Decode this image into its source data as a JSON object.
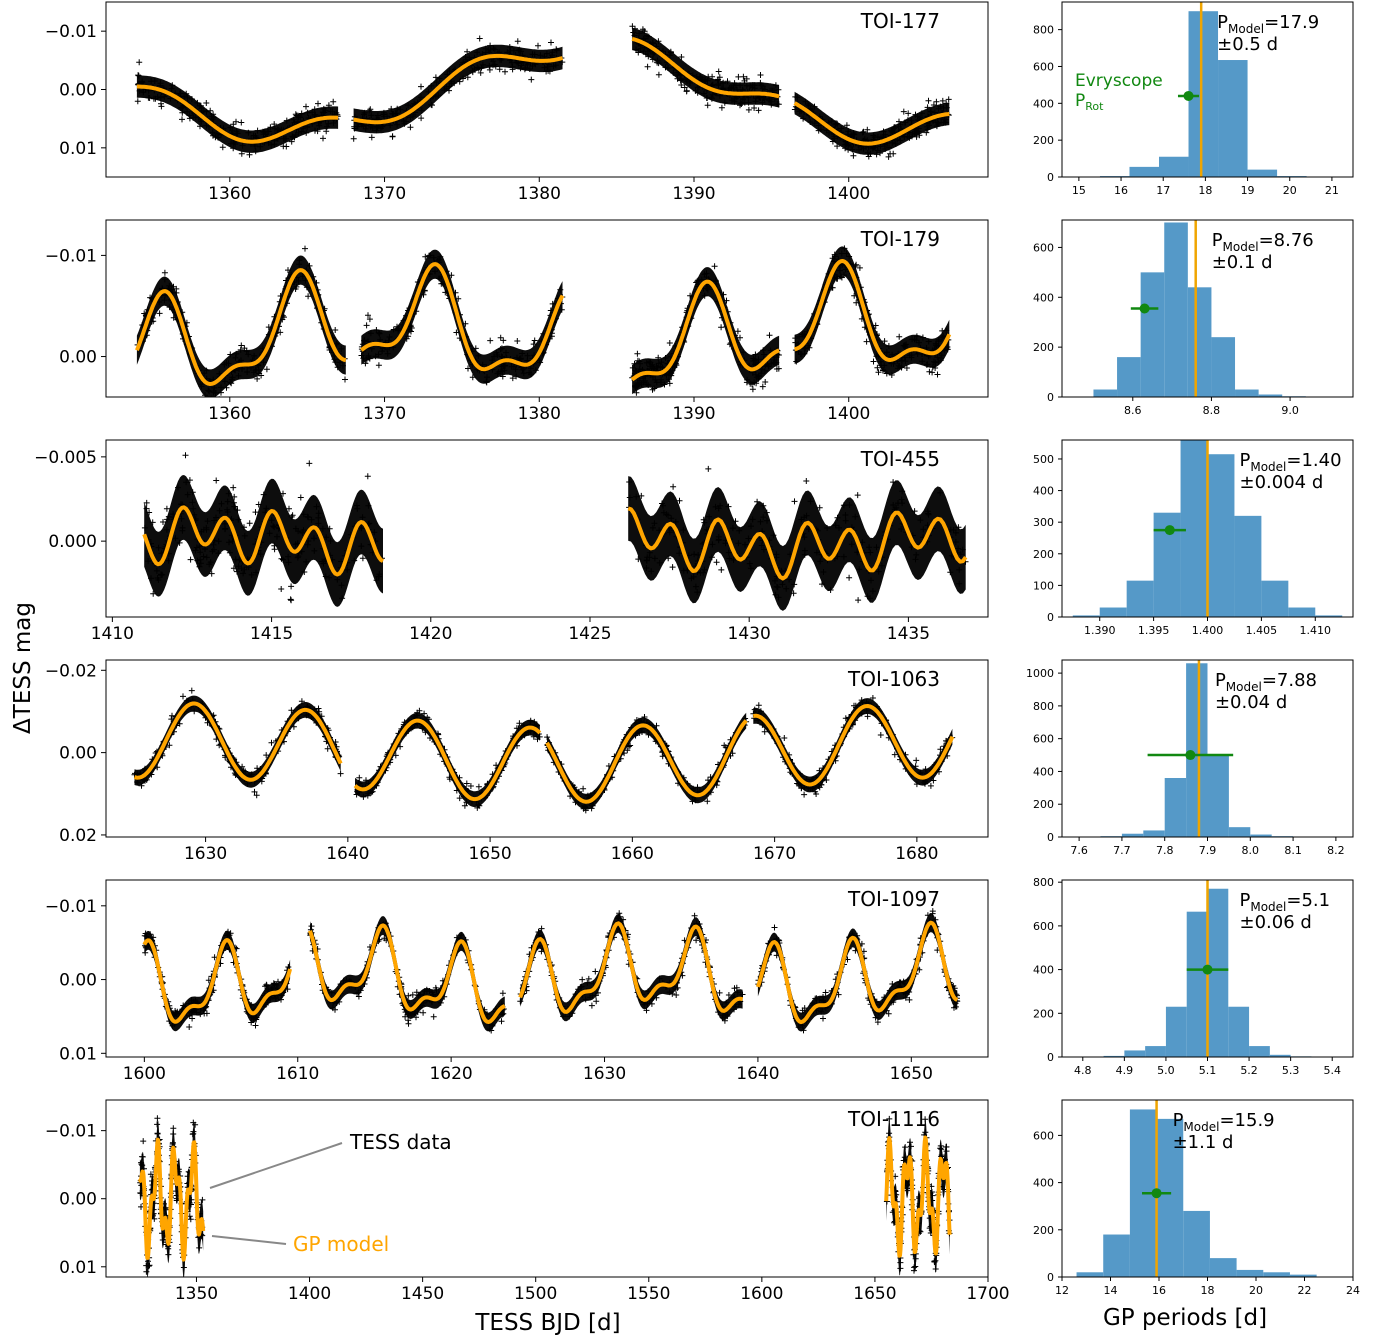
{
  "figure": {
    "ylabel": "ΔTESS mag",
    "xlabel_left": "TESS BJD [d]",
    "xlabel_right": "GP periods [d]"
  },
  "colors": {
    "data": "#000000",
    "model": "#FFA500",
    "hist": "#5599C8",
    "period_line": "#F0A500",
    "evryscope": "#118811"
  },
  "annotations": {
    "evryscope_label": "Evryscope",
    "evryscope_sub": "P",
    "evryscope_sub_sub": "Rot",
    "tess_data": "TESS data",
    "gp_model": "GP model"
  },
  "chart_data": [
    {
      "type": "scatter",
      "title": "TOI-177",
      "xlim": [
        1352,
        1409
      ],
      "ylim": [
        0.015,
        -0.015
      ],
      "xticks": [
        1360,
        1370,
        1380,
        1390,
        1400
      ],
      "yticks": [
        -0.01,
        0.0,
        0.01
      ],
      "ytick_labels": [
        "−0.01",
        "0.00",
        "0.01"
      ],
      "segments": [
        [
          1354,
          1367
        ],
        [
          1368,
          1381.5
        ],
        [
          1386,
          1395.5
        ],
        [
          1396.5,
          1406.5
        ]
      ],
      "model": {
        "components": [
          [
            0.0075,
            39,
            1.8
          ],
          [
            0.002,
            10,
            1.0
          ]
        ],
        "offset": 0.0
      },
      "scatter_mag": 0.0012,
      "histogram": {
        "xlim": [
          14.6,
          21.5
        ],
        "ylim": [
          0,
          950
        ],
        "xticks": [
          15,
          16,
          17,
          18,
          19,
          20,
          21
        ],
        "ytick_labels": [
          "0",
          "200",
          "400",
          "600",
          "800"
        ],
        "yticks": [
          0,
          200,
          400,
          600,
          800
        ],
        "bin_edges": [
          15.5,
          16.2,
          16.9,
          17.6,
          18.3,
          19.0,
          19.7,
          20.4
        ],
        "counts": [
          5,
          55,
          110,
          900,
          635,
          40,
          5
        ],
        "p_model": 17.9,
        "p_model_label": "=17.9",
        "p_err_label": "±0.5 d",
        "evryscope": {
          "value": 17.6,
          "err": 0.25,
          "y": 440
        }
      }
    },
    {
      "type": "scatter",
      "title": "TOI-179",
      "xlim": [
        1352,
        1409
      ],
      "ylim": [
        0.004,
        -0.0135
      ],
      "xticks": [
        1360,
        1370,
        1380,
        1390,
        1400
      ],
      "yticks": [
        -0.01,
        0.0
      ],
      "ytick_labels": [
        "−0.01",
        "0.00"
      ],
      "segments": [
        [
          1354,
          1367.5
        ],
        [
          1368.5,
          1381.5
        ],
        [
          1386,
          1395.5
        ],
        [
          1396.5,
          1406.5
        ]
      ],
      "model": {
        "components": [
          [
            0.0042,
            8.76,
            0.0
          ],
          [
            0.0018,
            4.38,
            1.2
          ],
          [
            0.0015,
            30,
            0.5
          ]
        ],
        "offset": -0.002
      },
      "scatter_mag": 0.0009,
      "histogram": {
        "xlim": [
          8.42,
          9.16
        ],
        "ylim": [
          0,
          710
        ],
        "xticks": [
          8.6,
          8.8,
          9.0
        ],
        "ytick_labels": [
          "0",
          "200",
          "400",
          "600"
        ],
        "yticks": [
          0,
          200,
          400,
          600
        ],
        "bin_edges": [
          8.5,
          8.56,
          8.62,
          8.68,
          8.74,
          8.8,
          8.86,
          8.92,
          8.98,
          9.04
        ],
        "counts": [
          30,
          160,
          500,
          700,
          440,
          240,
          30,
          10,
          3
        ],
        "p_model": 8.76,
        "p_model_label": "=8.76",
        "p_err_label": "±0.1 d",
        "evryscope": {
          "value": 8.63,
          "err": 0.035,
          "y": 355
        }
      }
    },
    {
      "type": "scatter",
      "title": "TOI-455",
      "xlim": [
        1409.8,
        1437.5
      ],
      "ylim": [
        0.0045,
        -0.006
      ],
      "xticks": [
        1410,
        1415,
        1420,
        1425,
        1430,
        1435
      ],
      "yticks": [
        -0.005,
        0.0
      ],
      "ytick_labels": [
        "−0.005",
        "0.000"
      ],
      "segments": [
        [
          1411,
          1418.5
        ],
        [
          1426.2,
          1436.8
        ]
      ],
      "model": {
        "components": [
          [
            0.0012,
            1.4,
            0.3
          ],
          [
            0.0006,
            2.8,
            1.5
          ],
          [
            0.0005,
            12,
            0.0
          ]
        ],
        "offset": 0.0
      },
      "scatter_mag": 0.0012,
      "histogram": {
        "xlim": [
          1.3865,
          1.4135
        ],
        "ylim": [
          0,
          560
        ],
        "xticks": [
          1.39,
          1.395,
          1.4,
          1.405,
          1.41
        ],
        "xtick_labels": [
          "1.390",
          "1.395",
          "1.400",
          "1.405",
          "1.410"
        ],
        "ytick_labels": [
          "0",
          "100",
          "200",
          "300",
          "400",
          "500"
        ],
        "yticks": [
          0,
          100,
          200,
          300,
          400,
          500
        ],
        "bin_edges": [
          1.3875,
          1.39,
          1.3925,
          1.395,
          1.3975,
          1.4,
          1.4025,
          1.405,
          1.4075,
          1.41,
          1.4125
        ],
        "counts": [
          5,
          30,
          115,
          330,
          560,
          515,
          320,
          115,
          30,
          5
        ],
        "p_model": 1.4,
        "p_model_label": "=1.40",
        "p_err_label": "±0.004 d",
        "evryscope": {
          "value": 1.3965,
          "err": 0.0015,
          "y": 275
        }
      }
    },
    {
      "type": "scatter",
      "title": "TOI-1063",
      "xlim": [
        1623,
        1685
      ],
      "ylim": [
        0.0205,
        -0.0225
      ],
      "xticks": [
        1630,
        1640,
        1650,
        1660,
        1670,
        1680
      ],
      "yticks": [
        -0.02,
        0.0,
        0.02
      ],
      "ytick_labels": [
        "−0.02",
        "0.00",
        "0.02"
      ],
      "segments": [
        [
          1625,
          1639.5
        ],
        [
          1640.5,
          1653.5
        ],
        [
          1654,
          1668
        ],
        [
          1668.5,
          1682.5
        ]
      ],
      "model": {
        "components": [
          [
            0.009,
            7.88,
            0.0
          ],
          [
            0.003,
            55,
            1.0
          ]
        ],
        "offset": 0.0
      },
      "scatter_mag": 0.0012,
      "histogram": {
        "xlim": [
          7.56,
          8.24
        ],
        "ylim": [
          0,
          1080
        ],
        "xticks": [
          7.6,
          7.7,
          7.8,
          7.9,
          8.0,
          8.1,
          8.2
        ],
        "ytick_labels": [
          "0",
          "200",
          "400",
          "600",
          "800",
          "1000"
        ],
        "yticks": [
          0,
          200,
          400,
          600,
          800,
          1000
        ],
        "bin_edges": [
          7.6,
          7.65,
          7.7,
          7.75,
          7.8,
          7.85,
          7.9,
          7.95,
          8.0,
          8.05,
          8.1,
          8.15,
          8.2
        ],
        "counts": [
          2,
          5,
          20,
          40,
          360,
          1060,
          500,
          60,
          15,
          5,
          2,
          1
        ],
        "p_model": 7.88,
        "p_model_label": "=7.88",
        "p_err_label": "±0.04 d",
        "evryscope": {
          "value": 7.86,
          "err": 0.1,
          "y": 500
        }
      }
    },
    {
      "type": "scatter",
      "title": "TOI-1097",
      "xlim": [
        1597.5,
        1655
      ],
      "ylim": [
        0.0105,
        -0.0135
      ],
      "xticks": [
        1600,
        1610,
        1620,
        1630,
        1640,
        1650
      ],
      "yticks": [
        -0.01,
        0.0,
        0.01
      ],
      "ytick_labels": [
        "−0.01",
        "0.00",
        "0.01"
      ],
      "segments": [
        [
          1600,
          1609.5
        ],
        [
          1610.8,
          1623.5
        ],
        [
          1624.5,
          1639
        ],
        [
          1640,
          1653
        ]
      ],
      "model": {
        "components": [
          [
            0.0045,
            5.1,
            0.0
          ],
          [
            0.002,
            2.55,
            1.0
          ],
          [
            0.0015,
            20,
            0.7
          ]
        ],
        "offset": 0.0
      },
      "scatter_mag": 0.0008,
      "histogram": {
        "xlim": [
          4.75,
          5.45
        ],
        "ylim": [
          0,
          810
        ],
        "xticks": [
          4.8,
          4.9,
          5.0,
          5.1,
          5.2,
          5.3,
          5.4
        ],
        "ytick_labels": [
          "0",
          "200",
          "400",
          "600",
          "800"
        ],
        "yticks": [
          0,
          200,
          400,
          600,
          800
        ],
        "bin_edges": [
          4.8,
          4.85,
          4.9,
          4.95,
          5.0,
          5.05,
          5.1,
          5.15,
          5.2,
          5.25,
          5.3,
          5.35,
          5.4
        ],
        "counts": [
          2,
          5,
          30,
          50,
          230,
          665,
          770,
          230,
          50,
          10,
          3,
          1
        ],
        "p_model": 5.1,
        "p_model_label": "=5.1",
        "p_err_label": "±0.06 d",
        "evryscope": {
          "value": 5.1,
          "err": 0.05,
          "y": 400
        }
      }
    },
    {
      "type": "scatter",
      "title": "TOI-1116",
      "xlim": [
        1310,
        1700
      ],
      "ylim": [
        0.0115,
        -0.0145
      ],
      "xticks": [
        1350,
        1400,
        1450,
        1500,
        1550,
        1600,
        1650,
        1700
      ],
      "yticks": [
        -0.01,
        0.0,
        0.01
      ],
      "ytick_labels": [
        "−0.01",
        "0.00",
        "0.01"
      ],
      "segments": [
        [
          1325,
          1353
        ],
        [
          1655,
          1683
        ]
      ],
      "model": {
        "components": [
          [
            0.006,
            7.9,
            0.4
          ],
          [
            0.003,
            3.2,
            1.0
          ]
        ],
        "offset": 0.0
      },
      "scatter_mag": 0.0018,
      "histogram": {
        "xlim": [
          12.0,
          24.0
        ],
        "ylim": [
          0,
          750
        ],
        "xticks": [
          12,
          14,
          16,
          18,
          20,
          22,
          24
        ],
        "ytick_labels": [
          "0",
          "200",
          "400",
          "600"
        ],
        "yticks": [
          0,
          200,
          400,
          600
        ],
        "bin_edges": [
          12.6,
          13.7,
          14.8,
          15.9,
          17.0,
          18.1,
          19.2,
          20.3,
          21.4,
          22.5,
          23.6
        ],
        "counts": [
          20,
          180,
          710,
          670,
          280,
          80,
          30,
          20,
          10,
          2
        ],
        "p_model": 15.9,
        "p_model_label": "=15.9",
        "p_err_label": "±1.1 d",
        "evryscope": {
          "value": 15.9,
          "err": 0.6,
          "y": 355
        }
      }
    }
  ]
}
